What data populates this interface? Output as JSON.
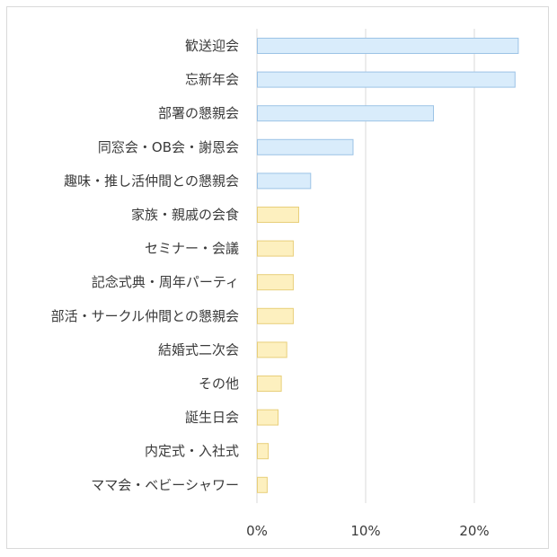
{
  "chart_data": {
    "type": "bar",
    "orientation": "horizontal",
    "title": "",
    "xlabel": "",
    "ylabel": "",
    "categories": [
      "歓送迎会",
      "忘新年会",
      "部署の懇親会",
      "同窓会・OB会・謝恩会",
      "趣味・推し活仲間との懇親会",
      "家族・親戚の会食",
      "セミナー・会議",
      "記念式典・周年パーティ",
      "部活・サークル仲間との懇親会",
      "結婚式二次会",
      "その他",
      "誕生日会",
      "内定式・入社式",
      "ママ会・ベビーシャワー"
    ],
    "values": [
      24.0,
      23.7,
      16.2,
      8.8,
      4.9,
      3.8,
      3.3,
      3.3,
      3.3,
      2.7,
      2.2,
      1.9,
      1.0,
      0.9
    ],
    "xlim": [
      0,
      26
    ],
    "xticks": [
      0,
      10,
      20
    ],
    "xtick_labels": [
      "0%",
      "10%",
      "20%"
    ],
    "grid": true,
    "legend": "none",
    "colors": {
      "group_a_fill": "#d9ecfb",
      "group_a_stroke": "#9cc3e6",
      "group_b_fill": "#fdf0bf",
      "group_b_stroke": "#e8cf7a",
      "grid": "#d9d9d9"
    },
    "color_groups": [
      "a",
      "a",
      "a",
      "a",
      "a",
      "b",
      "b",
      "b",
      "b",
      "b",
      "b",
      "b",
      "b",
      "b"
    ]
  }
}
